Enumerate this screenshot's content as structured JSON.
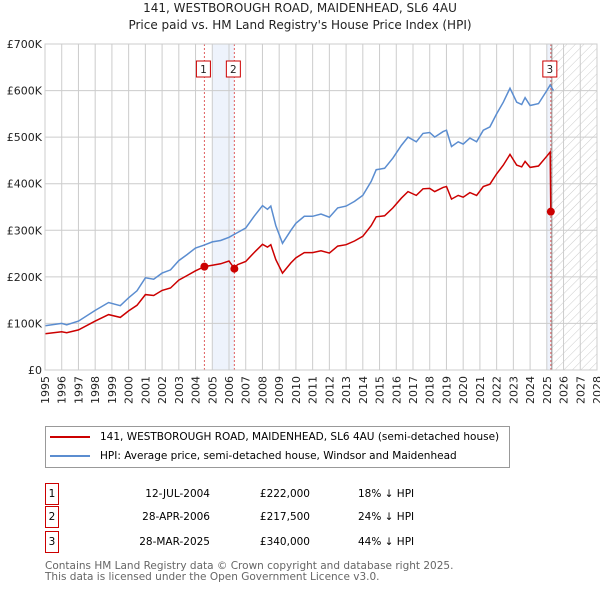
{
  "chart_data": {
    "type": "line",
    "title": "141, WESTBOROUGH ROAD, MAIDENHEAD, SL6 4AU",
    "subtitle": "Price paid vs. HM Land Registry's House Price Index (HPI)",
    "xlim": [
      1995,
      2028
    ],
    "ylim": [
      0,
      700000
    ],
    "y_ticks": [
      {
        "v": 0,
        "label": "£0"
      },
      {
        "v": 100000,
        "label": "£100K"
      },
      {
        "v": 200000,
        "label": "£200K"
      },
      {
        "v": 300000,
        "label": "£300K"
      },
      {
        "v": 400000,
        "label": "£400K"
      },
      {
        "v": 500000,
        "label": "£500K"
      },
      {
        "v": 600000,
        "label": "£600K"
      },
      {
        "v": 700000,
        "label": "£700K"
      }
    ],
    "x_ticks": [
      "1995",
      "1996",
      "1997",
      "1998",
      "1999",
      "2000",
      "2001",
      "2002",
      "2003",
      "2004",
      "2005",
      "2006",
      "2007",
      "2008",
      "2009",
      "2010",
      "2011",
      "2012",
      "2013",
      "2014",
      "2015",
      "2016",
      "2017",
      "2018",
      "2019",
      "2020",
      "2021",
      "2022",
      "2023",
      "2024",
      "2025",
      "2026",
      "2027",
      "2028"
    ],
    "grid": true,
    "series": [
      {
        "name": "141, WESTBOROUGH ROAD, MAIDENHEAD, SL6 4AU (semi-detached house)",
        "color": "#cc0000",
        "x": [
          1995,
          1996,
          1996.3,
          1997,
          1998,
          1998.8,
          1999.5,
          2000,
          2000.5,
          2001,
          2001.5,
          2002,
          2002.5,
          2003,
          2003.5,
          2004,
          2004.53,
          2005,
          2005.5,
          2006,
          2006.32,
          2006.5,
          2007,
          2007.5,
          2008,
          2008.3,
          2008.5,
          2008.8,
          2009.2,
          2009.7,
          2010,
          2010.5,
          2011,
          2011.5,
          2012,
          2012.5,
          2013,
          2013.5,
          2014,
          2014.5,
          2014.8,
          2015.3,
          2015.8,
          2016.3,
          2016.7,
          2017.2,
          2017.6,
          2018,
          2018.3,
          2018.8,
          2019,
          2019.3,
          2019.7,
          2020,
          2020.4,
          2020.8,
          2021.2,
          2021.6,
          2022,
          2022.4,
          2022.8,
          2023.2,
          2023.5,
          2023.7,
          2024,
          2024.5,
          2025,
          2025.2,
          2025.24
        ],
        "y": [
          78000,
          82000,
          80000,
          86000,
          105000,
          119000,
          113000,
          127000,
          139000,
          162000,
          160000,
          171000,
          176000,
          193000,
          203000,
          213000,
          222000,
          225000,
          228000,
          234000,
          217500,
          226000,
          233000,
          252000,
          270000,
          264000,
          269000,
          237000,
          208000,
          230000,
          241000,
          252000,
          252000,
          256000,
          251000,
          266000,
          269000,
          277000,
          287000,
          310000,
          329000,
          331000,
          348000,
          369000,
          383000,
          375000,
          389000,
          390000,
          383000,
          392000,
          394000,
          367000,
          375000,
          371000,
          381000,
          375000,
          394000,
          399000,
          421000,
          440000,
          463000,
          440000,
          436000,
          448000,
          435000,
          438000,
          459000,
          468000,
          340000
        ]
      },
      {
        "name": "HPI: Average price, semi-detached house, Windsor and Maidenhead",
        "color": "#5b8dd0",
        "x": [
          1995,
          1996,
          1996.3,
          1997,
          1998,
          1998.8,
          1999.5,
          2000,
          2000.5,
          2001,
          2001.5,
          2002,
          2002.5,
          2003,
          2003.5,
          2004,
          2004.5,
          2005,
          2005.5,
          2006,
          2006.5,
          2007,
          2007.5,
          2008,
          2008.3,
          2008.5,
          2008.8,
          2009.2,
          2009.7,
          2010,
          2010.5,
          2011,
          2011.5,
          2012,
          2012.5,
          2013,
          2013.5,
          2014,
          2014.5,
          2014.8,
          2015.3,
          2015.8,
          2016.3,
          2016.7,
          2017.2,
          2017.6,
          2018,
          2018.3,
          2018.8,
          2019,
          2019.3,
          2019.7,
          2020,
          2020.4,
          2020.8,
          2021.2,
          2021.6,
          2022,
          2022.4,
          2022.8,
          2023.2,
          2023.5,
          2023.7,
          2024,
          2024.5,
          2025,
          2025.2,
          2025.4
        ],
        "y": [
          95000,
          100000,
          97000,
          105000,
          128000,
          145000,
          138000,
          155000,
          170000,
          198000,
          195000,
          208000,
          215000,
          235000,
          248000,
          262000,
          268000,
          275000,
          278000,
          285000,
          295000,
          305000,
          330000,
          353000,
          345000,
          352000,
          310000,
          272000,
          300000,
          315000,
          330000,
          330000,
          335000,
          328000,
          348000,
          352000,
          362000,
          375000,
          405000,
          430000,
          433000,
          455000,
          482000,
          500000,
          490000,
          508000,
          510000,
          500000,
          512000,
          515000,
          480000,
          490000,
          485000,
          498000,
          490000,
          515000,
          522000,
          550000,
          575000,
          605000,
          575000,
          570000,
          585000,
          568000,
          572000,
          600000,
          612000,
          600000
        ]
      }
    ],
    "sales": [
      {
        "num": "1",
        "x": 2004.53,
        "price": 222000,
        "date": "12-JUL-2004",
        "price_label": "£222,000",
        "pct": "18% ↓ HPI"
      },
      {
        "num": "2",
        "x": 2006.32,
        "price": 217500,
        "date": "28-APR-2006",
        "price_label": "£217,500",
        "pct": "24% ↓ HPI"
      },
      {
        "num": "3",
        "x": 2025.24,
        "price": 340000,
        "date": "28-MAR-2025",
        "price_label": "£340,000",
        "pct": "44% ↓ HPI"
      }
    ],
    "shaded_ranges": [
      [
        2005.0,
        2006.32
      ],
      [
        2025.0,
        2025.24
      ]
    ],
    "forecast_hatch_from": 2025.3,
    "legend_placement": "below"
  },
  "footer": {
    "line1": "Contains HM Land Registry data © Crown copyright and database right 2025.",
    "line2": "This data is licensed under the Open Government Licence v3.0."
  }
}
